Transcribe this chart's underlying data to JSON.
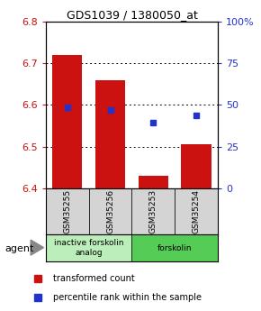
{
  "title": "GDS1039 / 1380050_at",
  "samples": [
    "GSM35255",
    "GSM35256",
    "GSM35253",
    "GSM35254"
  ],
  "bar_bottoms": [
    6.4,
    6.4,
    6.4,
    6.4
  ],
  "bar_tops": [
    6.72,
    6.66,
    6.43,
    6.505
  ],
  "blue_y": [
    6.595,
    6.587,
    6.558,
    6.575
  ],
  "ylim_left": [
    6.4,
    6.8
  ],
  "ylim_right": [
    0,
    100
  ],
  "yticks_left": [
    6.4,
    6.5,
    6.6,
    6.7,
    6.8
  ],
  "yticks_right": [
    0,
    25,
    50,
    75,
    100
  ],
  "ytick_labels_right": [
    "0",
    "25",
    "50",
    "75",
    "100%"
  ],
  "groups": [
    {
      "label": "inactive forskolin\nanalog",
      "samples": [
        0,
        1
      ],
      "color": "#bbeebb"
    },
    {
      "label": "forskolin",
      "samples": [
        2,
        3
      ],
      "color": "#55cc55"
    }
  ],
  "bar_color": "#cc1111",
  "blue_color": "#2233cc",
  "bar_width": 0.7,
  "agent_label": "agent",
  "legend_red": "transformed count",
  "legend_blue": "percentile rank within the sample",
  "tick_color_left": "#cc1111",
  "tick_color_right": "#2233cc",
  "bg_color": "#ffffff"
}
